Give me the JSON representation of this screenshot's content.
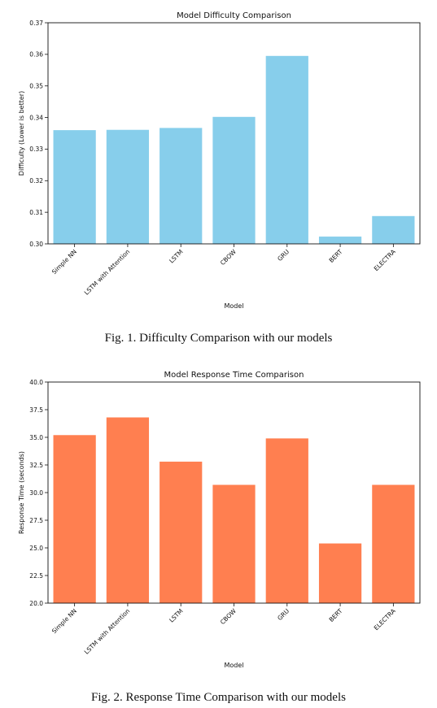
{
  "figures": [
    {
      "caption": "Fig. 1.  Difficulty Comparison with our models",
      "chart_data": {
        "type": "bar",
        "title": "Model Difficulty Comparison",
        "xlabel": "Model",
        "ylabel": "Difficulty (Lower is better)",
        "categories": [
          "Simple NN",
          "LSTM with Attention",
          "LSTM",
          "CBOW",
          "GRU",
          "BERT",
          "ELECTRA"
        ],
        "values": [
          0.336,
          0.3361,
          0.3367,
          0.3402,
          0.3595,
          0.3023,
          0.3088
        ],
        "ylim": [
          0.3,
          0.37
        ],
        "yticks": [
          "0.30",
          "0.31",
          "0.32",
          "0.33",
          "0.34",
          "0.35",
          "0.36",
          "0.37"
        ],
        "bar_color": "#87CEEB",
        "grid": false
      }
    },
    {
      "caption": "Fig. 2.  Response Time Comparison with our models",
      "chart_data": {
        "type": "bar",
        "title": "Model Response Time Comparison",
        "xlabel": "Model",
        "ylabel": "Response Time (seconds)",
        "categories": [
          "Simple NN",
          "LSTM with Attention",
          "LSTM",
          "CBOW",
          "GRU",
          "BERT",
          "ELECTRA"
        ],
        "values": [
          35.2,
          36.8,
          32.8,
          30.7,
          34.9,
          25.4,
          30.7
        ],
        "ylim": [
          20.0,
          40.0
        ],
        "yticks": [
          "20.0",
          "22.5",
          "25.0",
          "27.5",
          "30.0",
          "32.5",
          "35.0",
          "37.5",
          "40.0"
        ],
        "bar_color": "#FF7F50",
        "grid": false
      }
    }
  ]
}
